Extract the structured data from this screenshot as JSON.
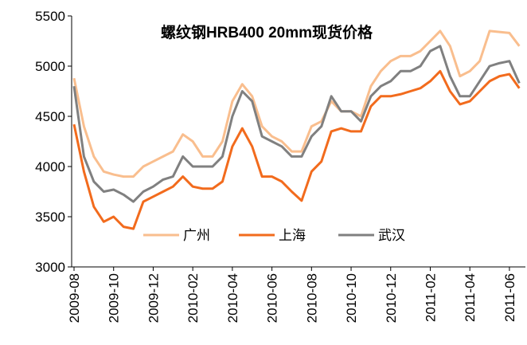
{
  "chart_data": {
    "type": "line",
    "title": "螺纹钢HRB400 20mm现货价格",
    "categories": [
      "2009-08",
      null,
      null,
      null,
      "2009-10",
      null,
      null,
      null,
      "2009-12",
      null,
      null,
      null,
      "2010-02",
      null,
      null,
      null,
      "2010-04",
      null,
      null,
      null,
      "2010-06",
      null,
      null,
      null,
      "2010-08",
      null,
      null,
      null,
      "2010-10",
      null,
      null,
      null,
      "2010-12",
      null,
      null,
      null,
      "2011-02",
      null,
      null,
      null,
      "2011-04",
      null,
      null,
      null,
      "2011-06",
      null
    ],
    "series": [
      {
        "name": "广州",
        "color": "#f9be8e",
        "values": [
          4880,
          4400,
          4100,
          3950,
          3920,
          3900,
          3900,
          4000,
          4050,
          4100,
          4150,
          4320,
          4250,
          4100,
          4100,
          4250,
          4650,
          4820,
          4700,
          4400,
          4300,
          4250,
          4150,
          4150,
          4400,
          4450,
          4650,
          4550,
          4550,
          4500,
          4800,
          4950,
          5050,
          5100,
          5100,
          5150,
          5250,
          5350,
          5200,
          4900,
          4950,
          5050,
          5350,
          5340,
          5330,
          5200
        ]
      },
      {
        "name": "上海",
        "color": "#f26b1d",
        "values": [
          4420,
          3950,
          3600,
          3450,
          3500,
          3400,
          3380,
          3650,
          3700,
          3750,
          3800,
          3900,
          3800,
          3780,
          3780,
          3850,
          4200,
          4380,
          4200,
          3900,
          3900,
          3850,
          3750,
          3660,
          3950,
          4050,
          4350,
          4380,
          4350,
          4350,
          4600,
          4700,
          4700,
          4720,
          4750,
          4780,
          4850,
          4950,
          4750,
          4620,
          4650,
          4750,
          4850,
          4900,
          4920,
          4780
        ]
      },
      {
        "name": "武汉",
        "color": "#808080",
        "values": [
          4800,
          4100,
          3850,
          3750,
          3770,
          3720,
          3650,
          3750,
          3800,
          3870,
          3900,
          4100,
          4000,
          4000,
          4000,
          4100,
          4500,
          4750,
          4650,
          4300,
          4250,
          4200,
          4100,
          4100,
          4300,
          4400,
          4700,
          4550,
          4550,
          4450,
          4700,
          4800,
          4850,
          4950,
          4950,
          5000,
          5150,
          5200,
          4900,
          4700,
          4700,
          4850,
          5000,
          5030,
          5050,
          4830
        ]
      }
    ],
    "ylim": [
      3000,
      5500
    ],
    "yticks": [
      3000,
      3500,
      4000,
      4500,
      5000,
      5500
    ],
    "grid": false,
    "legend": "bottom"
  }
}
